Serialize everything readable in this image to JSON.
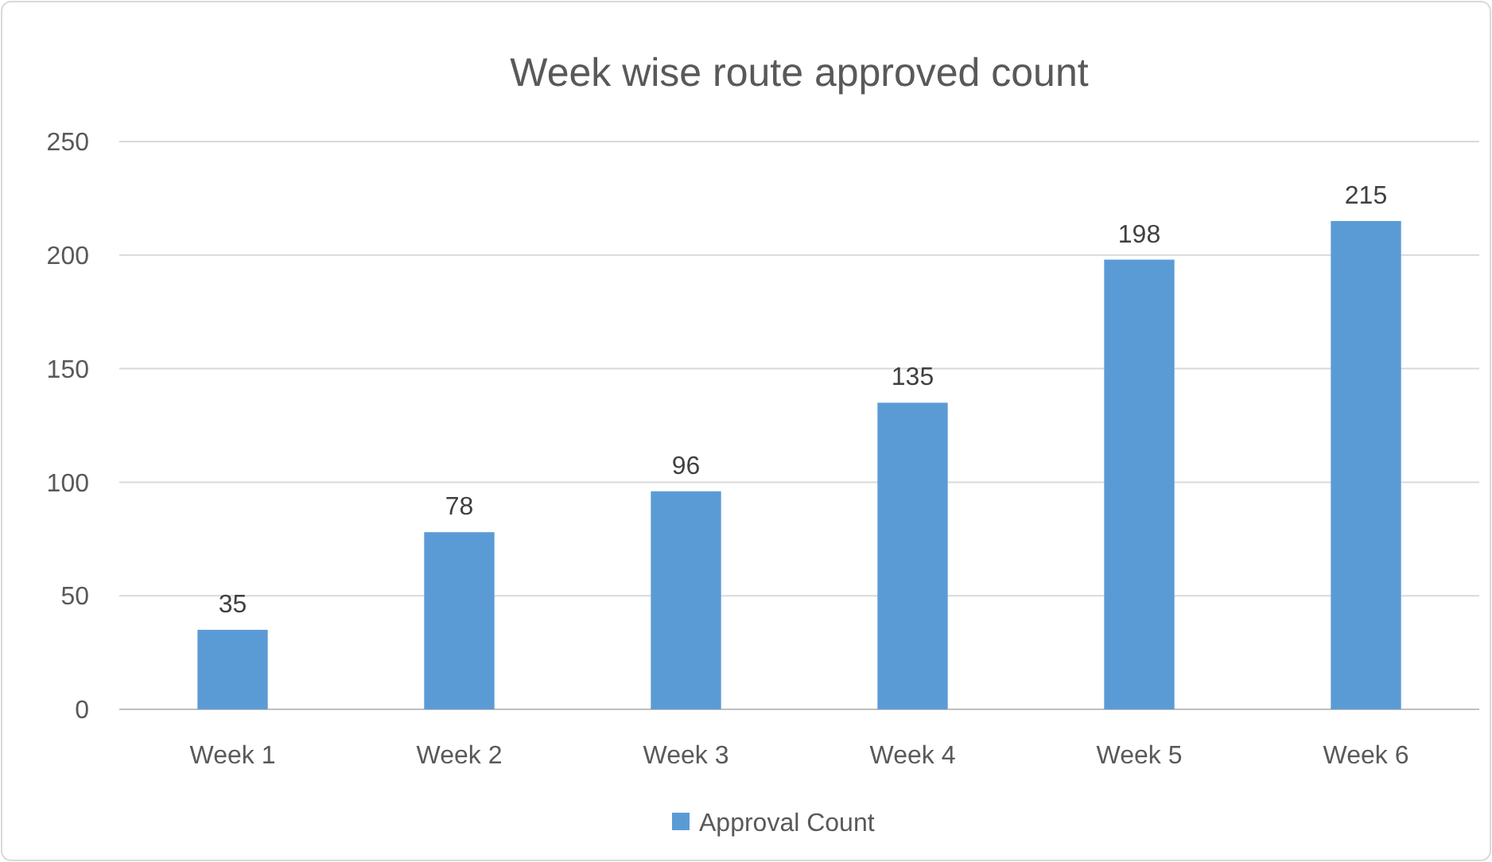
{
  "chart_data": {
    "type": "bar",
    "title": "Week wise route approved count",
    "categories": [
      "Week 1",
      "Week 2",
      "Week 3",
      "Week 4",
      "Week 5",
      "Week 6"
    ],
    "series": [
      {
        "name": "Approval Count",
        "color": "#5b9bd5",
        "values": [
          35,
          78,
          96,
          135,
          198,
          215
        ]
      }
    ],
    "ylim": [
      0,
      250
    ],
    "yticks": [
      0,
      50,
      100,
      150,
      200,
      250
    ],
    "grid": "y",
    "legend": "bottom",
    "data_labels": true
  }
}
